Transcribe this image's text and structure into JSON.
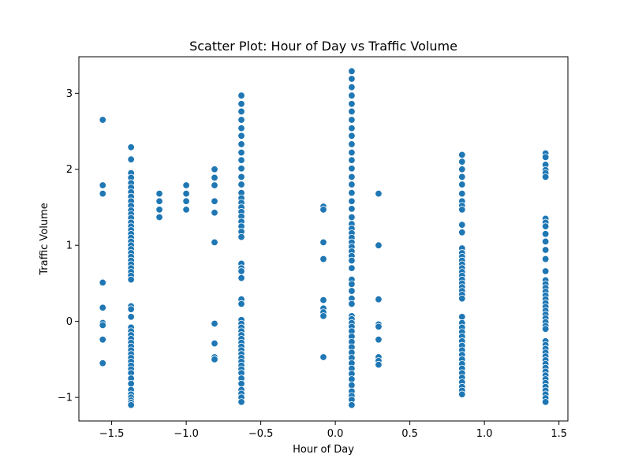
{
  "chart_data": {
    "type": "scatter",
    "title": "Scatter Plot: Hour of Day vs Traffic Volume",
    "xlabel": "Hour of Day",
    "ylabel": "Traffic Volume",
    "xlim": [
      -1.72,
      1.56
    ],
    "ylim": [
      -1.31,
      3.48
    ],
    "xticks": [
      {
        "value": -1.5,
        "label": "−1.5"
      },
      {
        "value": -1.0,
        "label": "−1.0"
      },
      {
        "value": -0.5,
        "label": "−0.5"
      },
      {
        "value": 0.0,
        "label": "0.0"
      },
      {
        "value": 0.5,
        "label": "0.5"
      },
      {
        "value": 1.0,
        "label": "1.0"
      },
      {
        "value": 1.5,
        "label": "1.5"
      }
    ],
    "yticks": [
      {
        "value": -1,
        "label": "−1"
      },
      {
        "value": 0,
        "label": "0"
      },
      {
        "value": 1,
        "label": "1"
      },
      {
        "value": 2,
        "label": "2"
      },
      {
        "value": 3,
        "label": "3"
      }
    ],
    "grid": false,
    "color": "#1f77b4",
    "points": [
      {
        "x": -1.56,
        "y": 2.65
      },
      {
        "x": -1.56,
        "y": 1.79
      },
      {
        "x": -1.56,
        "y": 1.68
      },
      {
        "x": -1.56,
        "y": 0.51
      },
      {
        "x": -1.56,
        "y": 0.18
      },
      {
        "x": -1.56,
        "y": -0.02
      },
      {
        "x": -1.56,
        "y": -0.05
      },
      {
        "x": -1.56,
        "y": -0.24
      },
      {
        "x": -1.56,
        "y": -0.55
      },
      {
        "x": -1.37,
        "y": 2.29
      },
      {
        "x": -1.37,
        "y": 2.13
      },
      {
        "x": -1.37,
        "y": 1.95
      },
      {
        "x": -1.37,
        "y": 1.89
      },
      {
        "x": -1.37,
        "y": 1.82
      },
      {
        "x": -1.37,
        "y": 1.76
      },
      {
        "x": -1.37,
        "y": 1.7
      },
      {
        "x": -1.37,
        "y": 1.64
      },
      {
        "x": -1.37,
        "y": 1.58
      },
      {
        "x": -1.37,
        "y": 1.52
      },
      {
        "x": -1.37,
        "y": 1.46
      },
      {
        "x": -1.37,
        "y": 1.41
      },
      {
        "x": -1.37,
        "y": 1.36
      },
      {
        "x": -1.37,
        "y": 1.3
      },
      {
        "x": -1.37,
        "y": 1.25
      },
      {
        "x": -1.37,
        "y": 1.2
      },
      {
        "x": -1.37,
        "y": 1.15
      },
      {
        "x": -1.37,
        "y": 1.1
      },
      {
        "x": -1.37,
        "y": 1.05
      },
      {
        "x": -1.37,
        "y": 1.0
      },
      {
        "x": -1.37,
        "y": 0.95
      },
      {
        "x": -1.37,
        "y": 0.9
      },
      {
        "x": -1.37,
        "y": 0.85
      },
      {
        "x": -1.37,
        "y": 0.8
      },
      {
        "x": -1.37,
        "y": 0.75
      },
      {
        "x": -1.37,
        "y": 0.7
      },
      {
        "x": -1.37,
        "y": 0.65
      },
      {
        "x": -1.37,
        "y": 0.6
      },
      {
        "x": -1.37,
        "y": 0.55
      },
      {
        "x": -1.37,
        "y": 0.2
      },
      {
        "x": -1.37,
        "y": 0.16
      },
      {
        "x": -1.37,
        "y": 0.06
      },
      {
        "x": -1.37,
        "y": -0.08
      },
      {
        "x": -1.37,
        "y": -0.13
      },
      {
        "x": -1.37,
        "y": -0.18
      },
      {
        "x": -1.37,
        "y": -0.23
      },
      {
        "x": -1.37,
        "y": -0.28
      },
      {
        "x": -1.37,
        "y": -0.33
      },
      {
        "x": -1.37,
        "y": -0.38
      },
      {
        "x": -1.37,
        "y": -0.43
      },
      {
        "x": -1.37,
        "y": -0.48
      },
      {
        "x": -1.37,
        "y": -0.53
      },
      {
        "x": -1.37,
        "y": -0.58
      },
      {
        "x": -1.37,
        "y": -0.63
      },
      {
        "x": -1.37,
        "y": -0.68
      },
      {
        "x": -1.37,
        "y": -0.75
      },
      {
        "x": -1.37,
        "y": -0.82
      },
      {
        "x": -1.37,
        "y": -0.9
      },
      {
        "x": -1.37,
        "y": -0.96
      },
      {
        "x": -1.37,
        "y": -1.0
      },
      {
        "x": -1.37,
        "y": -1.04
      },
      {
        "x": -1.37,
        "y": -1.07
      },
      {
        "x": -1.37,
        "y": -1.1
      },
      {
        "x": -1.18,
        "y": 1.68
      },
      {
        "x": -1.18,
        "y": 1.58
      },
      {
        "x": -1.18,
        "y": 1.47
      },
      {
        "x": -1.18,
        "y": 1.37
      },
      {
        "x": -1.0,
        "y": 1.79
      },
      {
        "x": -1.0,
        "y": 1.68
      },
      {
        "x": -1.0,
        "y": 1.58
      },
      {
        "x": -1.0,
        "y": 1.47
      },
      {
        "x": -0.81,
        "y": 2.0
      },
      {
        "x": -0.81,
        "y": 1.89
      },
      {
        "x": -0.81,
        "y": 1.79
      },
      {
        "x": -0.81,
        "y": 1.58
      },
      {
        "x": -0.81,
        "y": 1.43
      },
      {
        "x": -0.81,
        "y": 1.04
      },
      {
        "x": -0.81,
        "y": -0.03
      },
      {
        "x": -0.81,
        "y": -0.29
      },
      {
        "x": -0.81,
        "y": -0.47
      },
      {
        "x": -0.81,
        "y": -0.5
      },
      {
        "x": -0.63,
        "y": 2.97
      },
      {
        "x": -0.63,
        "y": 2.86
      },
      {
        "x": -0.63,
        "y": 2.76
      },
      {
        "x": -0.63,
        "y": 2.65
      },
      {
        "x": -0.63,
        "y": 2.54
      },
      {
        "x": -0.63,
        "y": 2.44
      },
      {
        "x": -0.63,
        "y": 2.33
      },
      {
        "x": -0.63,
        "y": 2.22
      },
      {
        "x": -0.63,
        "y": 2.12
      },
      {
        "x": -0.63,
        "y": 2.01
      },
      {
        "x": -0.63,
        "y": 1.9
      },
      {
        "x": -0.63,
        "y": 1.8
      },
      {
        "x": -0.63,
        "y": 1.69
      },
      {
        "x": -0.63,
        "y": 1.62
      },
      {
        "x": -0.63,
        "y": 1.56
      },
      {
        "x": -0.63,
        "y": 1.5
      },
      {
        "x": -0.63,
        "y": 1.44
      },
      {
        "x": -0.63,
        "y": 1.38
      },
      {
        "x": -0.63,
        "y": 1.31
      },
      {
        "x": -0.63,
        "y": 1.25
      },
      {
        "x": -0.63,
        "y": 1.18
      },
      {
        "x": -0.63,
        "y": 1.11
      },
      {
        "x": -0.63,
        "y": 0.76
      },
      {
        "x": -0.63,
        "y": 0.7
      },
      {
        "x": -0.63,
        "y": 0.66
      },
      {
        "x": -0.63,
        "y": 0.57
      },
      {
        "x": -0.63,
        "y": 0.29
      },
      {
        "x": -0.63,
        "y": 0.23
      },
      {
        "x": -0.63,
        "y": 0.02
      },
      {
        "x": -0.63,
        "y": -0.03
      },
      {
        "x": -0.63,
        "y": -0.08
      },
      {
        "x": -0.63,
        "y": -0.13
      },
      {
        "x": -0.63,
        "y": -0.18
      },
      {
        "x": -0.63,
        "y": -0.23
      },
      {
        "x": -0.63,
        "y": -0.28
      },
      {
        "x": -0.63,
        "y": -0.33
      },
      {
        "x": -0.63,
        "y": -0.38
      },
      {
        "x": -0.63,
        "y": -0.43
      },
      {
        "x": -0.63,
        "y": -0.48
      },
      {
        "x": -0.63,
        "y": -0.53
      },
      {
        "x": -0.63,
        "y": -0.58
      },
      {
        "x": -0.63,
        "y": -0.63
      },
      {
        "x": -0.63,
        "y": -0.68
      },
      {
        "x": -0.63,
        "y": -0.75
      },
      {
        "x": -0.63,
        "y": -0.82
      },
      {
        "x": -0.63,
        "y": -0.9
      },
      {
        "x": -0.63,
        "y": -0.95
      },
      {
        "x": -0.63,
        "y": -1.0
      },
      {
        "x": -0.63,
        "y": -1.06
      },
      {
        "x": -0.08,
        "y": 1.51
      },
      {
        "x": -0.08,
        "y": 1.47
      },
      {
        "x": -0.08,
        "y": 1.04
      },
      {
        "x": -0.08,
        "y": 0.82
      },
      {
        "x": -0.08,
        "y": 0.28
      },
      {
        "x": -0.08,
        "y": 0.17
      },
      {
        "x": -0.08,
        "y": 0.12
      },
      {
        "x": -0.08,
        "y": 0.07
      },
      {
        "x": -0.08,
        "y": -0.47
      },
      {
        "x": 0.11,
        "y": 3.29
      },
      {
        "x": 0.11,
        "y": 3.19
      },
      {
        "x": 0.11,
        "y": 3.08
      },
      {
        "x": 0.11,
        "y": 2.97
      },
      {
        "x": 0.11,
        "y": 2.86
      },
      {
        "x": 0.11,
        "y": 2.76
      },
      {
        "x": 0.11,
        "y": 2.65
      },
      {
        "x": 0.11,
        "y": 2.54
      },
      {
        "x": 0.11,
        "y": 2.44
      },
      {
        "x": 0.11,
        "y": 2.33
      },
      {
        "x": 0.11,
        "y": 2.22
      },
      {
        "x": 0.11,
        "y": 2.12
      },
      {
        "x": 0.11,
        "y": 2.01
      },
      {
        "x": 0.11,
        "y": 1.9
      },
      {
        "x": 0.11,
        "y": 1.8
      },
      {
        "x": 0.11,
        "y": 1.69
      },
      {
        "x": 0.11,
        "y": 1.58
      },
      {
        "x": 0.11,
        "y": 1.48
      },
      {
        "x": 0.11,
        "y": 1.37
      },
      {
        "x": 0.11,
        "y": 1.28
      },
      {
        "x": 0.11,
        "y": 1.22
      },
      {
        "x": 0.11,
        "y": 1.16
      },
      {
        "x": 0.11,
        "y": 1.1
      },
      {
        "x": 0.11,
        "y": 1.04
      },
      {
        "x": 0.11,
        "y": 0.98
      },
      {
        "x": 0.11,
        "y": 0.92
      },
      {
        "x": 0.11,
        "y": 0.86
      },
      {
        "x": 0.11,
        "y": 0.8
      },
      {
        "x": 0.11,
        "y": 0.7
      },
      {
        "x": 0.11,
        "y": 0.55
      },
      {
        "x": 0.11,
        "y": 0.49
      },
      {
        "x": 0.11,
        "y": 0.4
      },
      {
        "x": 0.11,
        "y": 0.3
      },
      {
        "x": 0.11,
        "y": 0.23
      },
      {
        "x": 0.11,
        "y": 0.07
      },
      {
        "x": 0.11,
        "y": 0.03
      },
      {
        "x": 0.11,
        "y": -0.02
      },
      {
        "x": 0.11,
        "y": -0.07
      },
      {
        "x": 0.11,
        "y": -0.13
      },
      {
        "x": 0.11,
        "y": -0.2
      },
      {
        "x": 0.11,
        "y": -0.27
      },
      {
        "x": 0.11,
        "y": -0.34
      },
      {
        "x": 0.11,
        "y": -0.41
      },
      {
        "x": 0.11,
        "y": -0.48
      },
      {
        "x": 0.11,
        "y": -0.55
      },
      {
        "x": 0.11,
        "y": -0.62
      },
      {
        "x": 0.11,
        "y": -0.69
      },
      {
        "x": 0.11,
        "y": -0.76
      },
      {
        "x": 0.11,
        "y": -0.84
      },
      {
        "x": 0.11,
        "y": -0.92
      },
      {
        "x": 0.11,
        "y": -0.98
      },
      {
        "x": 0.11,
        "y": -1.03
      },
      {
        "x": 0.11,
        "y": -1.1
      },
      {
        "x": 0.29,
        "y": 1.68
      },
      {
        "x": 0.29,
        "y": 1.0
      },
      {
        "x": 0.29,
        "y": 0.29
      },
      {
        "x": 0.29,
        "y": -0.04
      },
      {
        "x": 0.29,
        "y": -0.07
      },
      {
        "x": 0.29,
        "y": -0.24
      },
      {
        "x": 0.29,
        "y": -0.47
      },
      {
        "x": 0.29,
        "y": -0.52
      },
      {
        "x": 0.29,
        "y": -0.57
      },
      {
        "x": 0.85,
        "y": 2.19
      },
      {
        "x": 0.85,
        "y": 2.1
      },
      {
        "x": 0.85,
        "y": 2.0
      },
      {
        "x": 0.85,
        "y": 1.9
      },
      {
        "x": 0.85,
        "y": 1.8
      },
      {
        "x": 0.85,
        "y": 1.68
      },
      {
        "x": 0.85,
        "y": 1.58
      },
      {
        "x": 0.85,
        "y": 1.52
      },
      {
        "x": 0.85,
        "y": 1.47
      },
      {
        "x": 0.85,
        "y": 1.27
      },
      {
        "x": 0.85,
        "y": 1.17
      },
      {
        "x": 0.85,
        "y": 0.96
      },
      {
        "x": 0.85,
        "y": 0.9
      },
      {
        "x": 0.85,
        "y": 0.85
      },
      {
        "x": 0.85,
        "y": 0.8
      },
      {
        "x": 0.85,
        "y": 0.75
      },
      {
        "x": 0.85,
        "y": 0.7
      },
      {
        "x": 0.85,
        "y": 0.65
      },
      {
        "x": 0.85,
        "y": 0.6
      },
      {
        "x": 0.85,
        "y": 0.55
      },
      {
        "x": 0.85,
        "y": 0.5
      },
      {
        "x": 0.85,
        "y": 0.45
      },
      {
        "x": 0.85,
        "y": 0.4
      },
      {
        "x": 0.85,
        "y": 0.35
      },
      {
        "x": 0.85,
        "y": 0.3
      },
      {
        "x": 0.85,
        "y": 0.06
      },
      {
        "x": 0.85,
        "y": -0.02
      },
      {
        "x": 0.85,
        "y": -0.08
      },
      {
        "x": 0.85,
        "y": -0.14
      },
      {
        "x": 0.85,
        "y": -0.2
      },
      {
        "x": 0.85,
        "y": -0.26
      },
      {
        "x": 0.85,
        "y": -0.32
      },
      {
        "x": 0.85,
        "y": -0.38
      },
      {
        "x": 0.85,
        "y": -0.44
      },
      {
        "x": 0.85,
        "y": -0.5
      },
      {
        "x": 0.85,
        "y": -0.56
      },
      {
        "x": 0.85,
        "y": -0.62
      },
      {
        "x": 0.85,
        "y": -0.68
      },
      {
        "x": 0.85,
        "y": -0.74
      },
      {
        "x": 0.85,
        "y": -0.8
      },
      {
        "x": 0.85,
        "y": -0.86
      },
      {
        "x": 0.85,
        "y": -0.91
      },
      {
        "x": 0.85,
        "y": -0.96
      },
      {
        "x": 1.41,
        "y": 2.21
      },
      {
        "x": 1.41,
        "y": 2.16
      },
      {
        "x": 1.41,
        "y": 2.06
      },
      {
        "x": 1.41,
        "y": 1.99
      },
      {
        "x": 1.41,
        "y": 1.95
      },
      {
        "x": 1.41,
        "y": 1.9
      },
      {
        "x": 1.41,
        "y": 1.35
      },
      {
        "x": 1.41,
        "y": 1.3
      },
      {
        "x": 1.41,
        "y": 1.25
      },
      {
        "x": 1.41,
        "y": 1.15
      },
      {
        "x": 1.41,
        "y": 1.05
      },
      {
        "x": 1.41,
        "y": 0.94
      },
      {
        "x": 1.41,
        "y": 0.82
      },
      {
        "x": 1.41,
        "y": 0.66
      },
      {
        "x": 1.41,
        "y": 0.54
      },
      {
        "x": 1.41,
        "y": 0.49
      },
      {
        "x": 1.41,
        "y": 0.44
      },
      {
        "x": 1.41,
        "y": 0.39
      },
      {
        "x": 1.41,
        "y": 0.34
      },
      {
        "x": 1.41,
        "y": 0.29
      },
      {
        "x": 1.41,
        "y": 0.24
      },
      {
        "x": 1.41,
        "y": 0.19
      },
      {
        "x": 1.41,
        "y": 0.14
      },
      {
        "x": 1.41,
        "y": 0.09
      },
      {
        "x": 1.41,
        "y": 0.04
      },
      {
        "x": 1.41,
        "y": -0.01
      },
      {
        "x": 1.41,
        "y": -0.06
      },
      {
        "x": 1.41,
        "y": -0.1
      },
      {
        "x": 1.41,
        "y": -0.26
      },
      {
        "x": 1.41,
        "y": -0.31
      },
      {
        "x": 1.41,
        "y": -0.36
      },
      {
        "x": 1.41,
        "y": -0.41
      },
      {
        "x": 1.41,
        "y": -0.46
      },
      {
        "x": 1.41,
        "y": -0.51
      },
      {
        "x": 1.41,
        "y": -0.56
      },
      {
        "x": 1.41,
        "y": -0.61
      },
      {
        "x": 1.41,
        "y": -0.66
      },
      {
        "x": 1.41,
        "y": -0.71
      },
      {
        "x": 1.41,
        "y": -0.76
      },
      {
        "x": 1.41,
        "y": -0.81
      },
      {
        "x": 1.41,
        "y": -0.86
      },
      {
        "x": 1.41,
        "y": -0.91
      },
      {
        "x": 1.41,
        "y": -0.96
      },
      {
        "x": 1.41,
        "y": -1.01
      },
      {
        "x": 1.41,
        "y": -1.06
      }
    ]
  }
}
